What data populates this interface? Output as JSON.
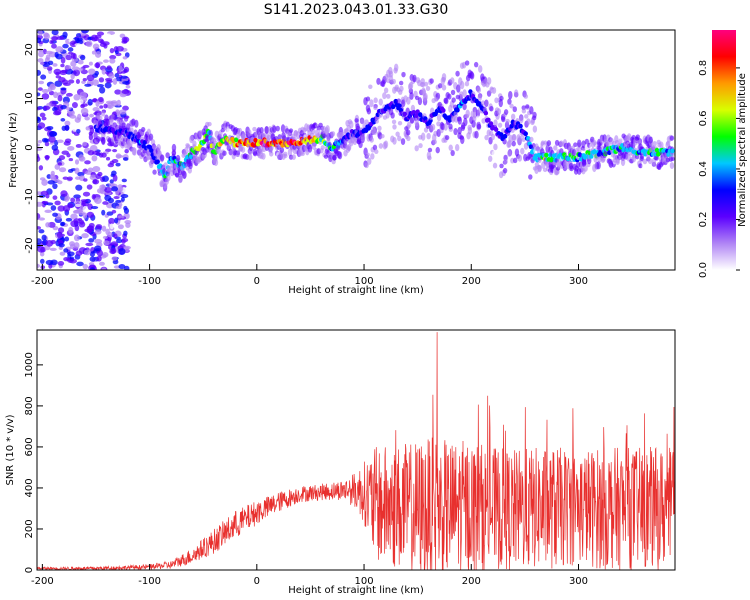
{
  "title": "S141.2023.043.01.33.G30",
  "chart_data": [
    {
      "type": "heatmap",
      "xlabel": "Height of straight line (km)",
      "ylabel": "Frequency (Hz)",
      "xlim": [
        -205,
        390
      ],
      "ylim": [
        -25,
        24
      ],
      "xticks": [
        -200,
        -100,
        0,
        100,
        200,
        300
      ],
      "yticks": [
        -20,
        -10,
        0,
        10,
        20
      ],
      "ridge": {
        "x": [
          -145,
          -120,
          -100,
          -90,
          -85,
          -80,
          -70,
          -60,
          -50,
          -45,
          -40,
          -30,
          -20,
          0,
          20,
          40,
          60,
          70,
          80,
          90,
          100,
          110,
          120,
          130,
          140,
          150,
          160,
          170,
          180,
          190,
          200,
          210,
          220,
          230,
          240,
          250,
          260,
          270,
          280,
          300,
          320,
          340,
          360,
          380
        ],
        "y": [
          4,
          3,
          0,
          -4,
          -6,
          -2,
          -4,
          -1,
          1,
          3,
          -1,
          2,
          1,
          1,
          1,
          1,
          2,
          0,
          1,
          3,
          3,
          6,
          8,
          9,
          6,
          7,
          5,
          8,
          6,
          9,
          11,
          8,
          4,
          2,
          5,
          3,
          -2,
          -2,
          -2,
          -2,
          -1,
          0,
          -1,
          -1
        ],
        "amplitude": [
          0.3,
          0.3,
          0.35,
          0.4,
          0.45,
          0.4,
          0.45,
          0.55,
          0.6,
          0.6,
          0.55,
          0.65,
          0.75,
          0.85,
          0.9,
          0.8,
          0.6,
          0.45,
          0.35,
          0.3,
          0.3,
          0.3,
          0.3,
          0.35,
          0.3,
          0.3,
          0.3,
          0.3,
          0.3,
          0.35,
          0.3,
          0.3,
          0.3,
          0.3,
          0.3,
          0.3,
          0.45,
          0.55,
          0.5,
          0.45,
          0.45,
          0.45,
          0.45,
          0.45
        ]
      },
      "colorbar": {
        "label": "Normalized spectral amplitude",
        "range": [
          0,
          0.95
        ],
        "ticks": [
          "0.0",
          "0.2",
          "0.4",
          "0.6",
          "0.8"
        ],
        "colors": [
          "#ffffff",
          "#b084f5",
          "#5b00ff",
          "#0000ff",
          "#00c8ff",
          "#00ff00",
          "#d8ff00",
          "#ff9a00",
          "#ff0000",
          "#ff007e"
        ]
      }
    },
    {
      "type": "line",
      "xlabel": "Height of straight line (km)",
      "ylabel": "SNR (10 * v/v)",
      "xlim": [
        -205,
        390
      ],
      "ylim": [
        0,
        1170
      ],
      "xticks": [
        -200,
        -100,
        0,
        100,
        200,
        300
      ],
      "yticks": [
        0,
        200,
        400,
        600,
        800,
        1000
      ],
      "color": "#e8302e",
      "envelope": {
        "x": [
          -205,
          -150,
          -100,
          -80,
          -60,
          -40,
          -20,
          0,
          20,
          40,
          60,
          80,
          90,
          100,
          110,
          120,
          140,
          160,
          180,
          200,
          220,
          240,
          260,
          280,
          300,
          320,
          340,
          360,
          380,
          390
        ],
        "mean": [
          8,
          8,
          15,
          25,
          70,
          140,
          220,
          280,
          330,
          370,
          380,
          390,
          390,
          380,
          320,
          310,
          300,
          290,
          300,
          310,
          300,
          290,
          300,
          300,
          310,
          300,
          300,
          300,
          300,
          300
        ],
        "spread": [
          6,
          8,
          12,
          20,
          40,
          60,
          70,
          60,
          50,
          40,
          40,
          50,
          80,
          150,
          280,
          300,
          320,
          360,
          330,
          330,
          300,
          300,
          300,
          300,
          280,
          300,
          300,
          300,
          300,
          300
        ]
      },
      "peak": {
        "x": 168,
        "y": 1160
      }
    }
  ]
}
